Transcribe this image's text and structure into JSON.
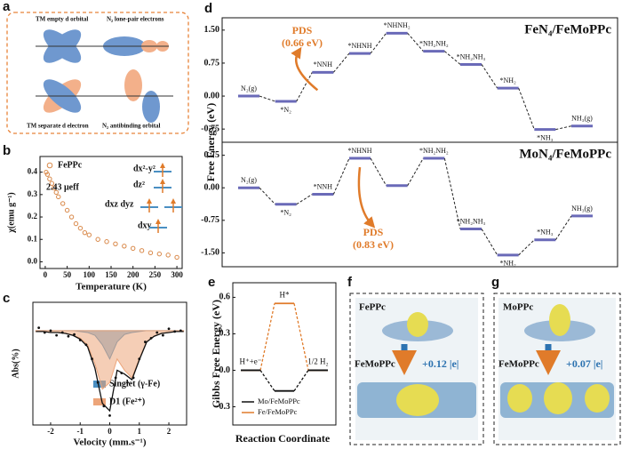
{
  "panel_labels": [
    "a",
    "b",
    "c",
    "d",
    "e",
    "f",
    "g"
  ],
  "schematic": {
    "top_left": "TM empty d orbital",
    "top_right": "N₂ lone-pair electrons",
    "bottom_left": "TM separate d electron",
    "bottom_right": "N₂ antibinding orbital"
  },
  "charge_panels": [
    {
      "molecule": "FePPc",
      "composite": "FeMoPPc",
      "charge": "+0.12 |e|"
    },
    {
      "molecule": "MoPPc",
      "composite": "FeMoPPc",
      "charge": "+0.07 |e|"
    }
  ],
  "chart_data": [
    {
      "type": "scatter",
      "xlabel": "Temperature (K)",
      "ylabel": "χ(emu g⁻¹)",
      "annotation": "2.43 μeff",
      "orbital_labels": [
        "dx²-y²",
        "dz²",
        "dxz dyz",
        "dxy"
      ],
      "xlim": [
        -12,
        312
      ],
      "ylim": [
        -0.03,
        0.47
      ],
      "xticks": [
        0,
        50,
        100,
        150,
        200,
        250,
        300
      ],
      "yticks": [
        {
          "value": 0,
          "label": "0.0"
        },
        0.1,
        0.2,
        0.3,
        0.4
      ],
      "x": [
        2,
        5,
        10,
        15,
        20,
        25,
        30,
        40,
        50,
        60,
        70,
        80,
        90,
        100,
        120,
        140,
        160,
        180,
        200,
        220,
        240,
        260,
        280,
        300
      ],
      "series": [
        {
          "name": "FePPc",
          "color": "#d9894a",
          "values": [
            0.4,
            0.39,
            0.37,
            0.35,
            0.33,
            0.31,
            0.29,
            0.26,
            0.23,
            0.2,
            0.17,
            0.15,
            0.13,
            0.12,
            0.1,
            0.09,
            0.08,
            0.07,
            0.06,
            0.05,
            0.04,
            0.035,
            0.03,
            0.02
          ]
        }
      ]
    },
    {
      "type": "mossbauer",
      "xlabel": "Velocity (mm.s⁻¹)",
      "ylabel": "Abs(%)",
      "xlim": [
        -2.6,
        2.6
      ],
      "ylim": [
        -1.0,
        0.3
      ],
      "xticks": [
        -2,
        -1,
        0,
        1,
        2
      ],
      "x": [
        -2.5,
        -2.25,
        -2.0,
        -1.75,
        -1.5,
        -1.25,
        -1.0,
        -0.75,
        -0.5,
        -0.25,
        0,
        0.25,
        0.5,
        0.75,
        1.0,
        1.25,
        1.5,
        1.75,
        2.0,
        2.25,
        2.5
      ],
      "fit": [
        -0.01,
        -0.01,
        -0.02,
        -0.02,
        -0.03,
        -0.05,
        -0.09,
        -0.17,
        -0.4,
        -0.77,
        -0.85,
        -0.42,
        -0.46,
        -0.52,
        -0.31,
        -0.12,
        -0.06,
        -0.03,
        -0.02,
        -0.01,
        -0.01
      ],
      "series": [
        {
          "name": "Singlet (γ-Fe)",
          "color": "#4a8fc2",
          "values": [
            0,
            0,
            0,
            0,
            0,
            0,
            -0.01,
            -0.02,
            -0.05,
            -0.15,
            -0.3,
            -0.12,
            -0.04,
            -0.02,
            -0.01,
            0,
            0,
            0,
            0,
            0,
            0
          ]
        },
        {
          "name": "D1 (Fe²⁺)",
          "color": "#eda57a",
          "values": [
            -0.01,
            -0.01,
            -0.02,
            -0.02,
            -0.03,
            -0.05,
            -0.08,
            -0.15,
            -0.35,
            -0.62,
            -0.55,
            -0.3,
            -0.42,
            -0.5,
            -0.3,
            -0.12,
            -0.06,
            -0.03,
            -0.02,
            -0.01,
            -0.01
          ]
        }
      ],
      "points": {
        "x": [
          -2.4,
          -2.2,
          -2.0,
          -1.8,
          -1.6,
          -1.4,
          -1.2,
          -1.0,
          -0.8,
          -0.6,
          -0.4,
          -0.2,
          0,
          0.2,
          0.4,
          0.6,
          0.8,
          1.0,
          1.2,
          1.4,
          1.6,
          1.8,
          2.0,
          2.2,
          2.4
        ],
        "values": [
          0.03,
          -0.02,
          0.0,
          -0.05,
          -0.02,
          -0.06,
          -0.04,
          -0.1,
          -0.15,
          -0.3,
          -0.55,
          -0.8,
          -0.9,
          -0.5,
          -0.45,
          -0.55,
          -0.5,
          -0.3,
          -0.12,
          -0.08,
          -0.02,
          -0.05,
          0.02,
          -0.01,
          0.0
        ]
      }
    },
    {
      "type": "energy-diagram",
      "title": "FeN₄/FeMoPPc",
      "ylabel": "Free Energy (eV)",
      "color": "#6a6ab8",
      "annotation": [
        "PDS",
        "(0.66 eV)"
      ],
      "ylim": [
        -1.05,
        1.78
      ],
      "yticks": [
        -0.75,
        {
          "value": 0,
          "label": "0.00"
        },
        0.75,
        {
          "value": 1.5,
          "label": "1.50"
        }
      ],
      "categories": [
        "N₂(g)",
        "*N₂",
        "*NNH",
        "*NHNH",
        "*NHNH₂",
        "*NH₂NH₂",
        "*NH₂NH₃",
        "*NH₂",
        "*NH₃",
        "NH₃(g)"
      ],
      "values": [
        0,
        -0.12,
        0.54,
        0.97,
        1.43,
        1.02,
        0.72,
        0.18,
        -0.76,
        -0.68
      ]
    },
    {
      "type": "energy-diagram",
      "title": "MoN₄/FeMoPPc",
      "color": "#6a6ab8",
      "annotation": [
        "PDS",
        "(0.83 eV)"
      ],
      "ylim": [
        -1.82,
        1.05
      ],
      "yticks": [
        {
          "value": -1.5,
          "label": "-1.50"
        },
        -0.75,
        {
          "value": 0,
          "label": "0.00"
        },
        0.75
      ],
      "categories": [
        "N₂(g)",
        "*N₂",
        "*NNH",
        "*NHNH",
        null,
        "*NH₂NH₂",
        "*NH₂NH₃",
        "*NH₂",
        "*NH₃",
        "NH₃(g)"
      ],
      "values": [
        0,
        -0.38,
        -0.15,
        0.68,
        0.05,
        0.68,
        -0.95,
        -1.55,
        -1.2,
        -0.65
      ]
    },
    {
      "type": "energy-profile",
      "xlabel": "Reaction Coordinate",
      "ylabel": "Gibbs Free Energy (eV)",
      "ylim": [
        -0.45,
        0.72
      ],
      "yticks": [
        -0.3,
        {
          "value": 0,
          "label": "0.0"
        },
        0.3,
        0.6
      ],
      "categories": [
        "H⁺+e⁻",
        "H*",
        "1/2 H₂"
      ],
      "series": [
        {
          "name": "Mo/FeMoPPc",
          "color": "#111111",
          "values": [
            0,
            -0.17,
            0
          ]
        },
        {
          "name": "Fe/FeMoPPc",
          "color": "#e07b2a",
          "values": [
            0,
            0.55,
            0
          ]
        }
      ]
    }
  ]
}
